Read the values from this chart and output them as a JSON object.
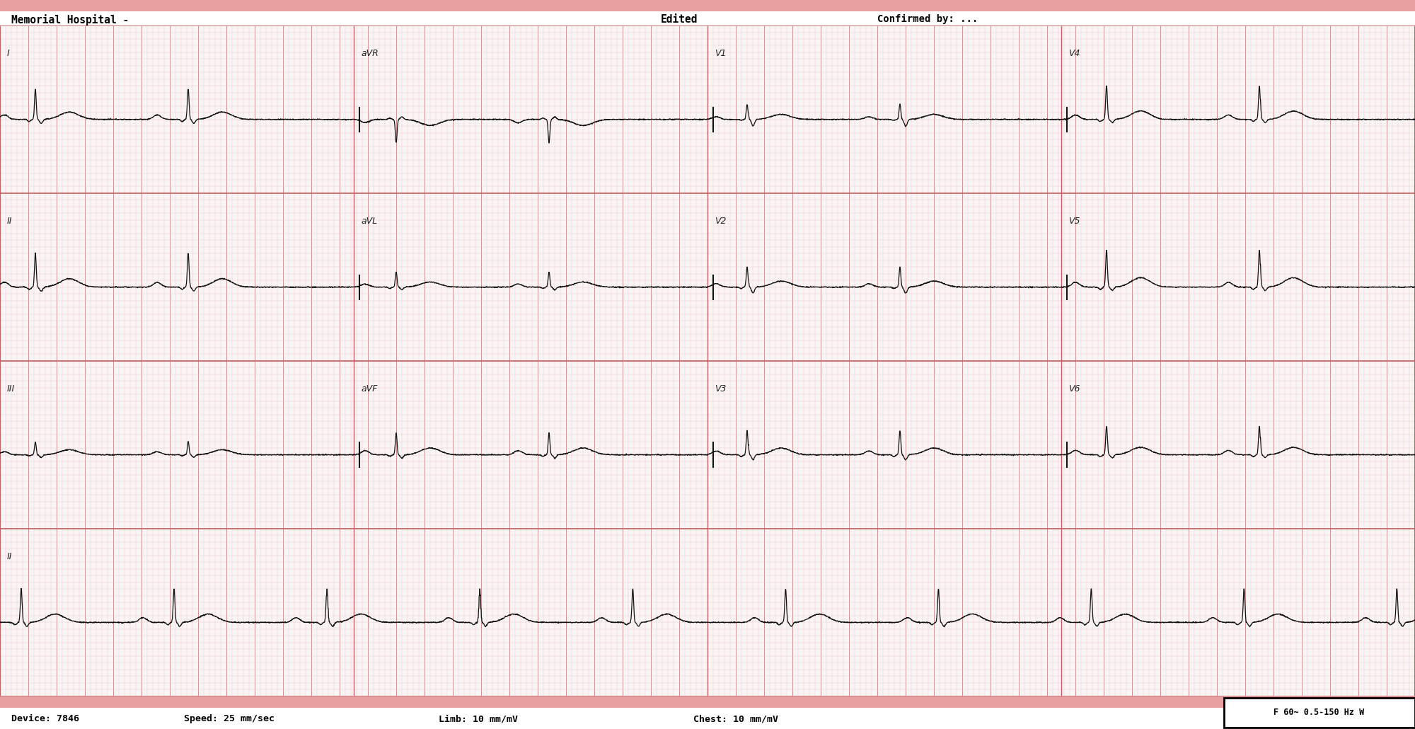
{
  "title_left": "Memorial Hospital -",
  "title_center": "Edited",
  "title_right": "Confirmed by: ...",
  "footer_left": "Device: 7846",
  "footer_speed": "Speed: 25 mm/sec",
  "footer_limb": "Limb: 10 mm/mV",
  "footer_chest": "Chest: 10 mm/mV",
  "footer_filter": "F 60~ 0.5-150 Hz W",
  "bg_color": "#faf4f4",
  "grid_minor_color": "#e8c8c8",
  "grid_major_color": "#d08080",
  "border_color": "#c06060",
  "ecg_color": "#111111",
  "header_bg": "#ffffff",
  "footer_bg": "#ffffff",
  "fig_width": 20.0,
  "fig_height": 10.3,
  "dpi": 100,
  "beat_interval": 1.08,
  "row_labels_col0": [
    "I",
    "II",
    "III",
    "II"
  ],
  "row_labels_col1": [
    "aVR",
    "aVL",
    "aVF",
    ""
  ],
  "row_labels_col2": [
    "V1",
    "V2",
    "V3",
    ""
  ],
  "row_labels_col3": [
    "V4",
    "V5",
    "V6",
    ""
  ]
}
